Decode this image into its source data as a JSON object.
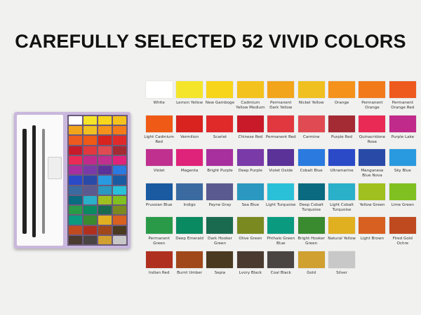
{
  "title": "CAREFULLY SELECTED 52 VIVID COLORS",
  "colors": [
    {
      "name": "White",
      "hex": "#ffffff"
    },
    {
      "name": "Lemon Yellow",
      "hex": "#f5e52a"
    },
    {
      "name": "New Gamboge",
      "hex": "#f7d51a"
    },
    {
      "name": "Cadmium Yellow Medium",
      "hex": "#f4c21c"
    },
    {
      "name": "Permanent Dark Yellow",
      "hex": "#f2a51a"
    },
    {
      "name": "Nickel Yellow",
      "hex": "#f0c020"
    },
    {
      "name": "Orange",
      "hex": "#f4921b"
    },
    {
      "name": "Permanent Orange",
      "hex": "#f27a1a"
    },
    {
      "name": "Permanent Orange Red",
      "hex": "#ee5a1e"
    },
    {
      "name": "Light Cadmium Red",
      "hex": "#ef5a16"
    },
    {
      "name": "Vermilion",
      "hex": "#d8231e"
    },
    {
      "name": "Scarlet",
      "hex": "#e02a2a"
    },
    {
      "name": "Chinese Red",
      "hex": "#c81a28"
    },
    {
      "name": "Permanent Red",
      "hex": "#e0383e"
    },
    {
      "name": "Carmine",
      "hex": "#e04a52"
    },
    {
      "name": "Purple Red",
      "hex": "#a42a34"
    },
    {
      "name": "Quinacridone Rose",
      "hex": "#e82a55"
    },
    {
      "name": "Purple Lake",
      "hex": "#c02a8a"
    },
    {
      "name": "Violet",
      "hex": "#c0308e"
    },
    {
      "name": "Magenta",
      "hex": "#e0237a"
    },
    {
      "name": "Bright Purple",
      "hex": "#a8309e"
    },
    {
      "name": "Deep Purple",
      "hex": "#7a3aa8"
    },
    {
      "name": "Violet Oxide",
      "hex": "#5a3298"
    },
    {
      "name": "Cobalt Blue",
      "hex": "#2a7ae0"
    },
    {
      "name": "Ultramarine",
      "hex": "#2a4ac8"
    },
    {
      "name": "Manganese Blue Nova",
      "hex": "#2a4aa8"
    },
    {
      "name": "Sky Blue",
      "hex": "#2a9ae0"
    },
    {
      "name": "Prussian Blue",
      "hex": "#1a5aa0"
    },
    {
      "name": "Indigo",
      "hex": "#3a6aa0"
    },
    {
      "name": "Payne Gray",
      "hex": "#5a5a90"
    },
    {
      "name": "Sea Blue",
      "hex": "#2a98c0"
    },
    {
      "name": "Light Turquoise",
      "hex": "#2ac0d8"
    },
    {
      "name": "Deep Cobalt Turquoise",
      "hex": "#0a6a80"
    },
    {
      "name": "Light Cobalt Turquoise",
      "hex": "#2ab0c8"
    },
    {
      "name": "Yellow Green",
      "hex": "#a0c020"
    },
    {
      "name": "Lime Green",
      "hex": "#80c020"
    },
    {
      "name": "Permanent Green",
      "hex": "#2a9a48"
    },
    {
      "name": "Deep Emerald",
      "hex": "#0a8a60"
    },
    {
      "name": "Dark Hooker Green",
      "hex": "#1a6a50"
    },
    {
      "name": "Olive Green",
      "hex": "#7a8a20"
    },
    {
      "name": "Phthalo Green Blue",
      "hex": "#0a9a80"
    },
    {
      "name": "Bright Hooker Green",
      "hex": "#3a8a30"
    },
    {
      "name": "Natural Yellow",
      "hex": "#e0b020"
    },
    {
      "name": "Light Brown",
      "hex": "#d86020"
    },
    {
      "name": "Fired Gold Ochre",
      "hex": "#c04a20"
    },
    {
      "name": "Indian Red",
      "hex": "#b03020"
    },
    {
      "name": "Burnt Umber",
      "hex": "#a0481a"
    },
    {
      "name": "Sepia",
      "hex": "#4a3a20"
    },
    {
      "name": "Lvory Black",
      "hex": "#4a3a30"
    },
    {
      "name": "Coal Black",
      "hex": "#4a4442"
    },
    {
      "name": "Gold",
      "hex": "#d0a030"
    },
    {
      "name": "Silver",
      "hex": "#c8c8c8"
    }
  ]
}
